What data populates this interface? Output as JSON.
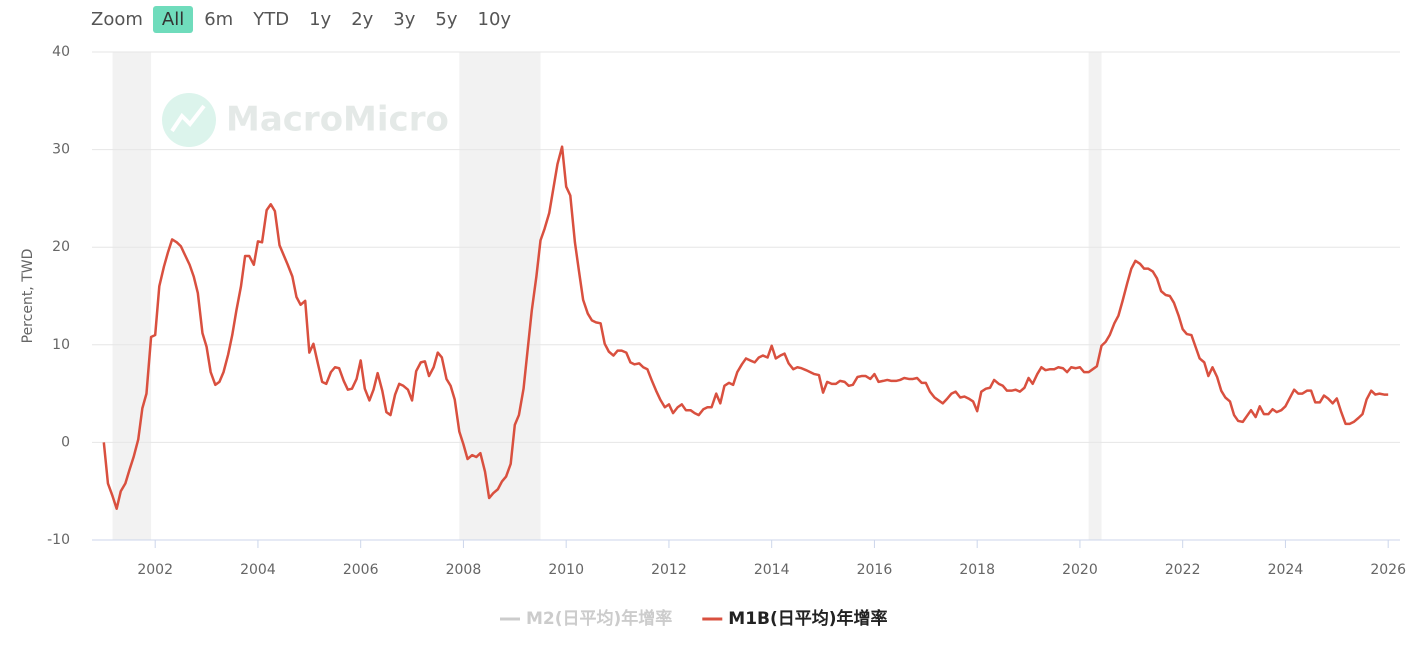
{
  "range_selector": {
    "label": "Zoom",
    "buttons": [
      "All",
      "6m",
      "YTD",
      "1y",
      "2y",
      "3y",
      "5y",
      "10y"
    ],
    "selected": 0
  },
  "chart_data": {
    "type": "line",
    "y_label": "Percent, TWD",
    "watermark": "MacroMicro",
    "xlim": [
      2000.77,
      2026.23
    ],
    "ylim": [
      -10,
      40
    ],
    "xticks": [
      2002,
      2004,
      2006,
      2008,
      2010,
      2012,
      2014,
      2016,
      2018,
      2020,
      2022,
      2024,
      2026
    ],
    "yticks": [
      -10,
      0,
      10,
      20,
      30,
      40
    ],
    "grid": true,
    "shaded_periods": [
      [
        2001.17,
        2001.92
      ],
      [
        2007.92,
        2009.5
      ],
      [
        2020.17,
        2020.42
      ]
    ],
    "shade_color": "#f2f2f2",
    "x": [
      2001,
      2001.08,
      2001.17,
      2001.25,
      2001.33,
      2001.42,
      2001.5,
      2001.58,
      2001.67,
      2001.75,
      2001.83,
      2001.92,
      2002,
      2002.08,
      2002.17,
      2002.25,
      2002.33,
      2002.42,
      2002.5,
      2002.58,
      2002.67,
      2002.75,
      2002.83,
      2002.92,
      2003,
      2003.08,
      2003.17,
      2003.25,
      2003.33,
      2003.42,
      2003.5,
      2003.58,
      2003.67,
      2003.75,
      2003.83,
      2003.92,
      2004,
      2004.08,
      2004.17,
      2004.25,
      2004.33,
      2004.42,
      2004.5,
      2004.58,
      2004.67,
      2004.75,
      2004.83,
      2004.92,
      2005,
      2005.08,
      2005.17,
      2005.25,
      2005.33,
      2005.42,
      2005.5,
      2005.58,
      2005.67,
      2005.75,
      2005.83,
      2005.92,
      2006,
      2006.08,
      2006.17,
      2006.25,
      2006.33,
      2006.42,
      2006.5,
      2006.58,
      2006.67,
      2006.75,
      2006.83,
      2006.92,
      2007,
      2007.08,
      2007.17,
      2007.25,
      2007.33,
      2007.42,
      2007.5,
      2007.58,
      2007.67,
      2007.75,
      2007.83,
      2007.92,
      2008,
      2008.08,
      2008.17,
      2008.25,
      2008.33,
      2008.42,
      2008.5,
      2008.58,
      2008.67,
      2008.75,
      2008.83,
      2008.92,
      2009,
      2009.08,
      2009.17,
      2009.25,
      2009.33,
      2009.42,
      2009.5,
      2009.58,
      2009.67,
      2009.75,
      2009.83,
      2009.92,
      2010,
      2010.08,
      2010.17,
      2010.25,
      2010.33,
      2010.42,
      2010.5,
      2010.58,
      2010.67,
      2010.75,
      2010.83,
      2010.92,
      2011,
      2011.08,
      2011.17,
      2011.25,
      2011.33,
      2011.42,
      2011.5,
      2011.58,
      2011.67,
      2011.75,
      2011.83,
      2011.92,
      2012,
      2012.08,
      2012.17,
      2012.25,
      2012.33,
      2012.42,
      2012.5,
      2012.58,
      2012.67,
      2012.75,
      2012.83,
      2012.92,
      2013,
      2013.08,
      2013.17,
      2013.25,
      2013.33,
      2013.42,
      2013.5,
      2013.58,
      2013.67,
      2013.75,
      2013.83,
      2013.92,
      2014,
      2014.08,
      2014.17,
      2014.25,
      2014.33,
      2014.42,
      2014.5,
      2014.58,
      2014.67,
      2014.75,
      2014.83,
      2014.92,
      2015,
      2015.08,
      2015.17,
      2015.25,
      2015.33,
      2015.42,
      2015.5,
      2015.58,
      2015.67,
      2015.75,
      2015.83,
      2015.92,
      2016,
      2016.08,
      2016.17,
      2016.25,
      2016.33,
      2016.42,
      2016.5,
      2016.58,
      2016.67,
      2016.75,
      2016.83,
      2016.92,
      2017,
      2017.08,
      2017.17,
      2017.25,
      2017.33,
      2017.42,
      2017.5,
      2017.58,
      2017.67,
      2017.75,
      2017.83,
      2017.92,
      2018,
      2018.08,
      2018.17,
      2018.25,
      2018.33,
      2018.42,
      2018.5,
      2018.58,
      2018.67,
      2018.75,
      2018.83,
      2018.92,
      2019,
      2019.08,
      2019.17,
      2019.25,
      2019.33,
      2019.42,
      2019.5,
      2019.58,
      2019.67,
      2019.75,
      2019.83,
      2019.92,
      2020,
      2020.08,
      2020.17,
      2020.25,
      2020.33,
      2020.42,
      2020.5,
      2020.58,
      2020.67,
      2020.75,
      2020.83,
      2020.92,
      2021,
      2021.08,
      2021.17,
      2021.25,
      2021.33,
      2021.42,
      2021.5,
      2021.58,
      2021.67,
      2021.75,
      2021.83,
      2021.92,
      2022,
      2022.08,
      2022.17,
      2022.25,
      2022.33,
      2022.42,
      2022.5,
      2022.58,
      2022.67,
      2022.75,
      2022.83,
      2022.92,
      2023,
      2023.08,
      2023.17,
      2023.25,
      2023.33,
      2023.42,
      2023.5,
      2023.58,
      2023.67,
      2023.75,
      2023.83,
      2023.92,
      2024,
      2024.08,
      2024.17,
      2024.25,
      2024.33,
      2024.42,
      2024.5,
      2024.58,
      2024.67,
      2024.75,
      2024.83,
      2024.92,
      2025,
      2025.08,
      2025.17,
      2025.25,
      2025.33,
      2025.42,
      2025.5,
      2025.58,
      2025.67,
      2025.75,
      2025.83,
      2025.92,
      2026
    ],
    "series": [
      {
        "name": "M2(日平均)年增率",
        "color": "#cccccc",
        "visible": false
      },
      {
        "name": "M1B(日平均)年增率",
        "color": "#d9503f",
        "visible": true,
        "values": [
          0,
          -4.2,
          -5.5,
          -6.8,
          -5,
          -4.2,
          -2.8,
          -1.5,
          0.3,
          3.5,
          5,
          10.8,
          11,
          16,
          18,
          19.5,
          20.8,
          20.5,
          20.1,
          19.2,
          18.2,
          17,
          15.3,
          11.2,
          9.8,
          7.2,
          5.9,
          6.2,
          7.2,
          9,
          11,
          13.5,
          16,
          19.1,
          19.1,
          18.2,
          20.6,
          20.5,
          23.8,
          24.4,
          23.7,
          20.2,
          19.2,
          18.2,
          17,
          14.9,
          14.1,
          14.5,
          9.2,
          10.1,
          8,
          6.2,
          6,
          7.2,
          7.7,
          7.6,
          6.3,
          5.4,
          5.5,
          6.5,
          8.4,
          5.5,
          4.3,
          5.4,
          7.1,
          5.3,
          3.1,
          2.8,
          4.9,
          6,
          5.8,
          5.4,
          4.3,
          7.3,
          8.2,
          8.3,
          6.8,
          7.7,
          9.2,
          8.7,
          6.5,
          5.8,
          4.4,
          1.1,
          -0.2,
          -1.7,
          -1.3,
          -1.5,
          -1.1,
          -3,
          -5.7,
          -5.2,
          -4.8,
          -4,
          -3.5,
          -2.2,
          1.8,
          2.8,
          5.5,
          9.5,
          13.5,
          17,
          20.7,
          21.9,
          23.5,
          26,
          28.5,
          30.3,
          26.2,
          25.3,
          20.5,
          17.5,
          14.6,
          13.2,
          12.5,
          12.3,
          12.2,
          10.1,
          9.3,
          8.9,
          9.4,
          9.4,
          9.2,
          8.2,
          8,
          8.1,
          7.7,
          7.5,
          6.3,
          5.3,
          4.4,
          3.6,
          3.9,
          3,
          3.6,
          3.9,
          3.3,
          3.3,
          3,
          2.8,
          3.4,
          3.6,
          3.6,
          5,
          4,
          5.8,
          6.1,
          5.9,
          7.2,
          8,
          8.6,
          8.4,
          8.2,
          8.7,
          8.9,
          8.7,
          9.9,
          8.6,
          8.9,
          9.1,
          8.1,
          7.5,
          7.7,
          7.6,
          7.4,
          7.2,
          7,
          6.9,
          5.1,
          6.2,
          6,
          6,
          6.3,
          6.2,
          5.8,
          5.9,
          6.7,
          6.8,
          6.8,
          6.5,
          7,
          6.2,
          6.3,
          6.4,
          6.3,
          6.3,
          6.4,
          6.6,
          6.5,
          6.5,
          6.6,
          6.1,
          6.1,
          5.2,
          4.6,
          4.3,
          4,
          4.5,
          5,
          5.2,
          4.6,
          4.7,
          4.5,
          4.2,
          3.2,
          5.2,
          5.5,
          5.6,
          6.4,
          6,
          5.8,
          5.3,
          5.3,
          5.4,
          5.2,
          5.6,
          6.6,
          6,
          7,
          7.7,
          7.4,
          7.5,
          7.5,
          7.7,
          7.6,
          7.2,
          7.7,
          7.6,
          7.7,
          7.2,
          7.2,
          7.5,
          7.8,
          9.9,
          10.3,
          11,
          12.2,
          13,
          14.5,
          16.3,
          17.8,
          18.6,
          18.3,
          17.8,
          17.8,
          17.5,
          16.8,
          15.5,
          15.1,
          15,
          14.3,
          13,
          11.6,
          11.1,
          11,
          9.8,
          8.6,
          8.2,
          6.8,
          7.7,
          6.7,
          5.3,
          4.6,
          4.2,
          2.8,
          2.2,
          2.1,
          2.7,
          3.3,
          2.6,
          3.7,
          2.9,
          2.9,
          3.4,
          3.1,
          3.3,
          3.7,
          4.5,
          5.4,
          5,
          5,
          5.3,
          5.3,
          4.1,
          4.1,
          4.8,
          4.5,
          4,
          4.5,
          3.2,
          1.9,
          1.9,
          2.1,
          2.5,
          2.9,
          4.4,
          5.3,
          4.9,
          5,
          4.9,
          4.9
        ]
      }
    ]
  }
}
